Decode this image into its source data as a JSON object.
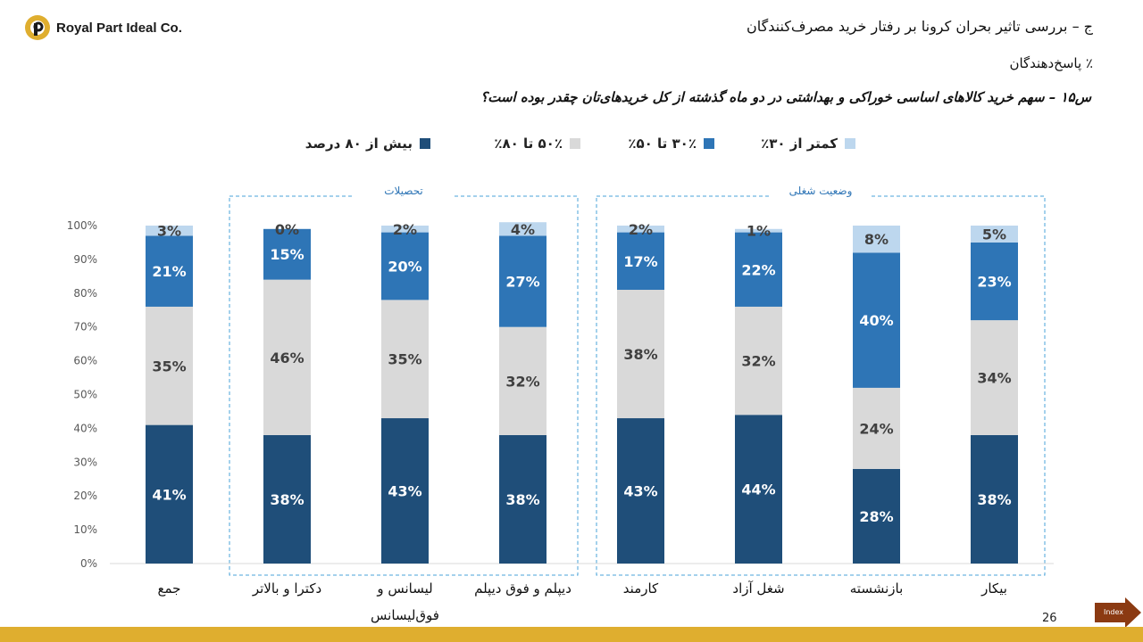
{
  "brand": {
    "name": "Royal Part Ideal Co."
  },
  "header": {
    "title": "ج – بررسی تاثیر بحران کرونا بر رفتار خرید مصرف‌کنندگان",
    "subtitle": "٪ پاسخ‌دهندگان",
    "question": "س۱۵ – سهم خرید کالاهای اساسی خوراکی و بهداشتی در دو ماه گذشته از کل خریدهای‌تان چقدر بوده است؟"
  },
  "colors": {
    "accent": "#dfae2f",
    "index_button": "#8b3a12",
    "group_border": "#4aa3d8"
  },
  "footer": {
    "page_number": "26",
    "index_label": "Index"
  },
  "chart_data": {
    "type": "bar",
    "stacked": true,
    "categories": [
      "جمع",
      "دکترا و بالاتر",
      "لیسانس و فوق‌لیسانس",
      "دیپلم و فوق دیپلم",
      "کارمند",
      "شغل آزاد",
      "بازنشسته",
      "بیکار"
    ],
    "groups": [
      {
        "label": "تحصیلات",
        "categories": [
          "دکترا و بالاتر",
          "لیسانس و فوق‌لیسانس",
          "دیپلم و فوق دیپلم"
        ]
      },
      {
        "label": "وضعیت شغلی",
        "categories": [
          "کارمند",
          "شغل آزاد",
          "بازنشسته",
          "بیکار"
        ]
      }
    ],
    "series": [
      {
        "name": "بیش از ۸۰ درصد",
        "color": "#1f4e79",
        "label_color": "#ffffff",
        "values": [
          41,
          38,
          43,
          38,
          43,
          44,
          28,
          38
        ]
      },
      {
        "name": "۵۰٪ تا ۸۰٪",
        "color": "#d9d9d9",
        "label_color": "#404040",
        "values": [
          35,
          46,
          35,
          32,
          38,
          32,
          24,
          34
        ]
      },
      {
        "name": "۳۰٪ تا ۵۰٪",
        "color": "#2e75b6",
        "label_color": "#ffffff",
        "values": [
          21,
          15,
          20,
          27,
          17,
          22,
          40,
          23
        ]
      },
      {
        "name": "کمتر از ۳۰٪",
        "color": "#bdd7ee",
        "label_color": "#404040",
        "values": [
          3,
          0,
          2,
          4,
          2,
          1,
          8,
          5
        ]
      }
    ],
    "ylim": [
      0,
      100
    ],
    "yticks": [
      "0%",
      "10%",
      "20%",
      "30%",
      "40%",
      "50%",
      "60%",
      "70%",
      "80%",
      "90%",
      "100%"
    ],
    "legend_position": "top"
  }
}
